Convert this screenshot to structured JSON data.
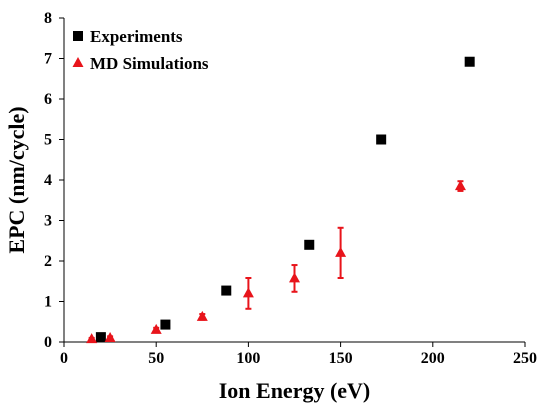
{
  "chart_data": {
    "type": "scatter",
    "title": "",
    "xlabel": "Ion Energy (eV)",
    "ylabel": "EPC (nm/cycle)",
    "xlim": [
      0,
      250
    ],
    "ylim": [
      0,
      8
    ],
    "x_ticks": [
      "0",
      "50",
      "100",
      "150",
      "200",
      "250"
    ],
    "y_ticks": [
      "0",
      "1",
      "2",
      "3",
      "4",
      "5",
      "6",
      "7",
      "8"
    ],
    "grid": false,
    "legend_position": "top-left",
    "series": [
      {
        "name": "Experiments",
        "marker": "square",
        "color": "#000000",
        "points": [
          {
            "x": 20,
            "y": 0.12
          },
          {
            "x": 55,
            "y": 0.43
          },
          {
            "x": 88,
            "y": 1.27
          },
          {
            "x": 133,
            "y": 2.4
          },
          {
            "x": 172,
            "y": 5.0
          },
          {
            "x": 220,
            "y": 6.92
          }
        ]
      },
      {
        "name": "MD Simulations",
        "marker": "triangle",
        "color": "#e8141b",
        "points": [
          {
            "x": 15,
            "y": 0.07,
            "err": 0.03
          },
          {
            "x": 25,
            "y": 0.1,
            "err": 0.04
          },
          {
            "x": 50,
            "y": 0.3,
            "err": 0.05
          },
          {
            "x": 75,
            "y": 0.62,
            "err": 0.07
          },
          {
            "x": 100,
            "y": 1.2,
            "err": 0.38
          },
          {
            "x": 125,
            "y": 1.57,
            "err": 0.33
          },
          {
            "x": 150,
            "y": 2.2,
            "err": 0.62
          },
          {
            "x": 215,
            "y": 3.85,
            "err": 0.12
          }
        ]
      }
    ]
  }
}
